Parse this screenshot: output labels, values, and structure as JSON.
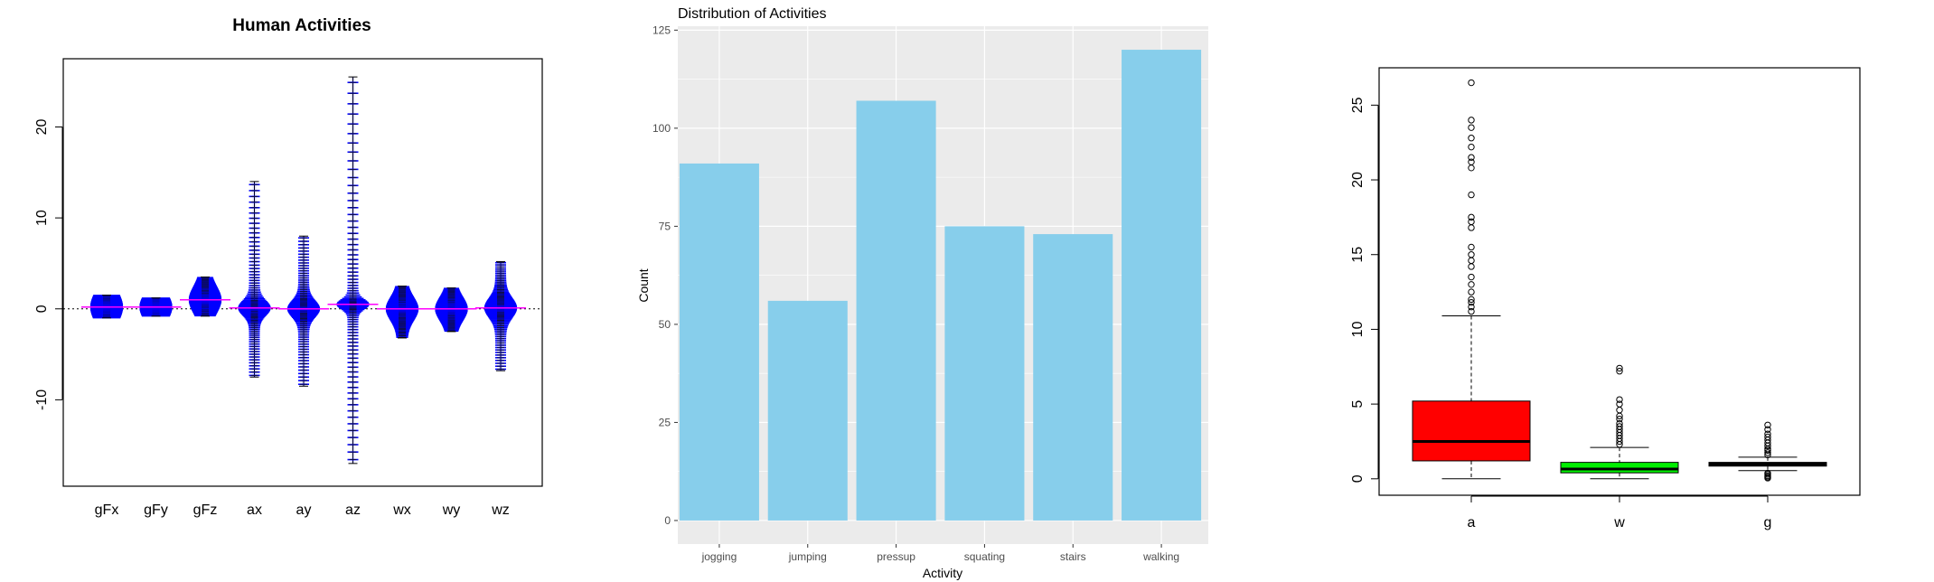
{
  "chart_data": [
    {
      "type": "beanplot",
      "title": "Human Activities",
      "xlabel": "",
      "ylabel": "",
      "categories": [
        "gFx",
        "gFy",
        "gFz",
        "ax",
        "ay",
        "az",
        "wx",
        "wy",
        "wz"
      ],
      "ylim": [
        -19.5,
        27.5
      ],
      "yticks": [
        -10,
        0,
        10,
        20
      ],
      "grid": false,
      "series": [
        {
          "category": "gFx",
          "median": 0.2,
          "min": -1.0,
          "max": 1.5,
          "spread": 0.9
        },
        {
          "category": "gFy",
          "median": 0.2,
          "min": -0.8,
          "max": 1.2,
          "spread": 0.8
        },
        {
          "category": "gFz",
          "median": 1.0,
          "min": -0.8,
          "max": 3.5,
          "spread": 0.8
        },
        {
          "category": "ax",
          "median": 0.1,
          "min": -7.5,
          "max": 14.0,
          "spread": 0.45
        },
        {
          "category": "ay",
          "median": 0.0,
          "min": -8.5,
          "max": 8.0,
          "spread": 0.5
        },
        {
          "category": "az",
          "median": 0.5,
          "min": -17.0,
          "max": 25.5,
          "spread": 0.3
        },
        {
          "category": "wx",
          "median": 0.0,
          "min": -3.2,
          "max": 2.5,
          "spread": 0.7
        },
        {
          "category": "wy",
          "median": 0.0,
          "min": -2.5,
          "max": 2.3,
          "spread": 0.7
        },
        {
          "category": "wz",
          "median": 0.1,
          "min": -6.8,
          "max": 5.2,
          "spread": 0.6
        }
      ],
      "overall_reference": 0,
      "colors": {
        "bean": "#0000ff",
        "lines": "#000000",
        "median": "#ff00ff"
      }
    },
    {
      "type": "bar",
      "title": "Distribution of Activities",
      "xlabel": "Activity",
      "ylabel": "Count",
      "categories": [
        "jogging",
        "jumping",
        "pressup",
        "squating",
        "stairs",
        "walking"
      ],
      "values": [
        91,
        56,
        107,
        75,
        73,
        120
      ],
      "ylim": [
        -6,
        126
      ],
      "yticks": [
        0,
        25,
        50,
        75,
        100,
        125
      ],
      "grid": true,
      "colors": {
        "bar": "#87ceeb",
        "panel": "#ebebeb",
        "grid": "#ffffff"
      }
    },
    {
      "type": "boxplot",
      "title": "",
      "xlabel": "",
      "ylabel": "",
      "categories": [
        "a",
        "w",
        "g"
      ],
      "ylim": [
        -1.1,
        27.5
      ],
      "yticks": [
        0,
        5,
        10,
        15,
        20,
        25
      ],
      "grid": false,
      "boxes": [
        {
          "name": "a",
          "min": 0.0,
          "q1": 1.2,
          "median": 2.5,
          "q3": 5.2,
          "max": 10.9,
          "outliers": [
            11.2,
            11.5,
            11.8,
            12.0,
            12.5,
            13.0,
            13.5,
            14.2,
            14.6,
            15.0,
            15.5,
            16.8,
            17.2,
            17.5,
            19.0,
            20.8,
            21.2,
            21.5,
            22.2,
            22.8,
            23.5,
            24.0,
            26.5
          ],
          "color": "#ff0000"
        },
        {
          "name": "w",
          "min": 0.0,
          "q1": 0.4,
          "median": 0.65,
          "q3": 1.1,
          "max": 2.1,
          "outliers": [
            2.3,
            2.5,
            2.7,
            2.9,
            3.1,
            3.3,
            3.5,
            3.7,
            4.0,
            4.2,
            4.6,
            5.0,
            5.3,
            7.2,
            7.4
          ],
          "color": "#00ee00"
        },
        {
          "name": "g",
          "min": 0.55,
          "q1": 0.85,
          "median": 0.98,
          "q3": 1.1,
          "max": 1.45,
          "outliers": [
            0.05,
            0.12,
            0.2,
            0.3,
            0.38,
            1.6,
            1.75,
            1.9,
            2.0,
            2.2,
            2.4,
            2.6,
            2.8,
            3.0,
            3.3,
            3.6
          ],
          "color": "#000000"
        }
      ]
    }
  ]
}
